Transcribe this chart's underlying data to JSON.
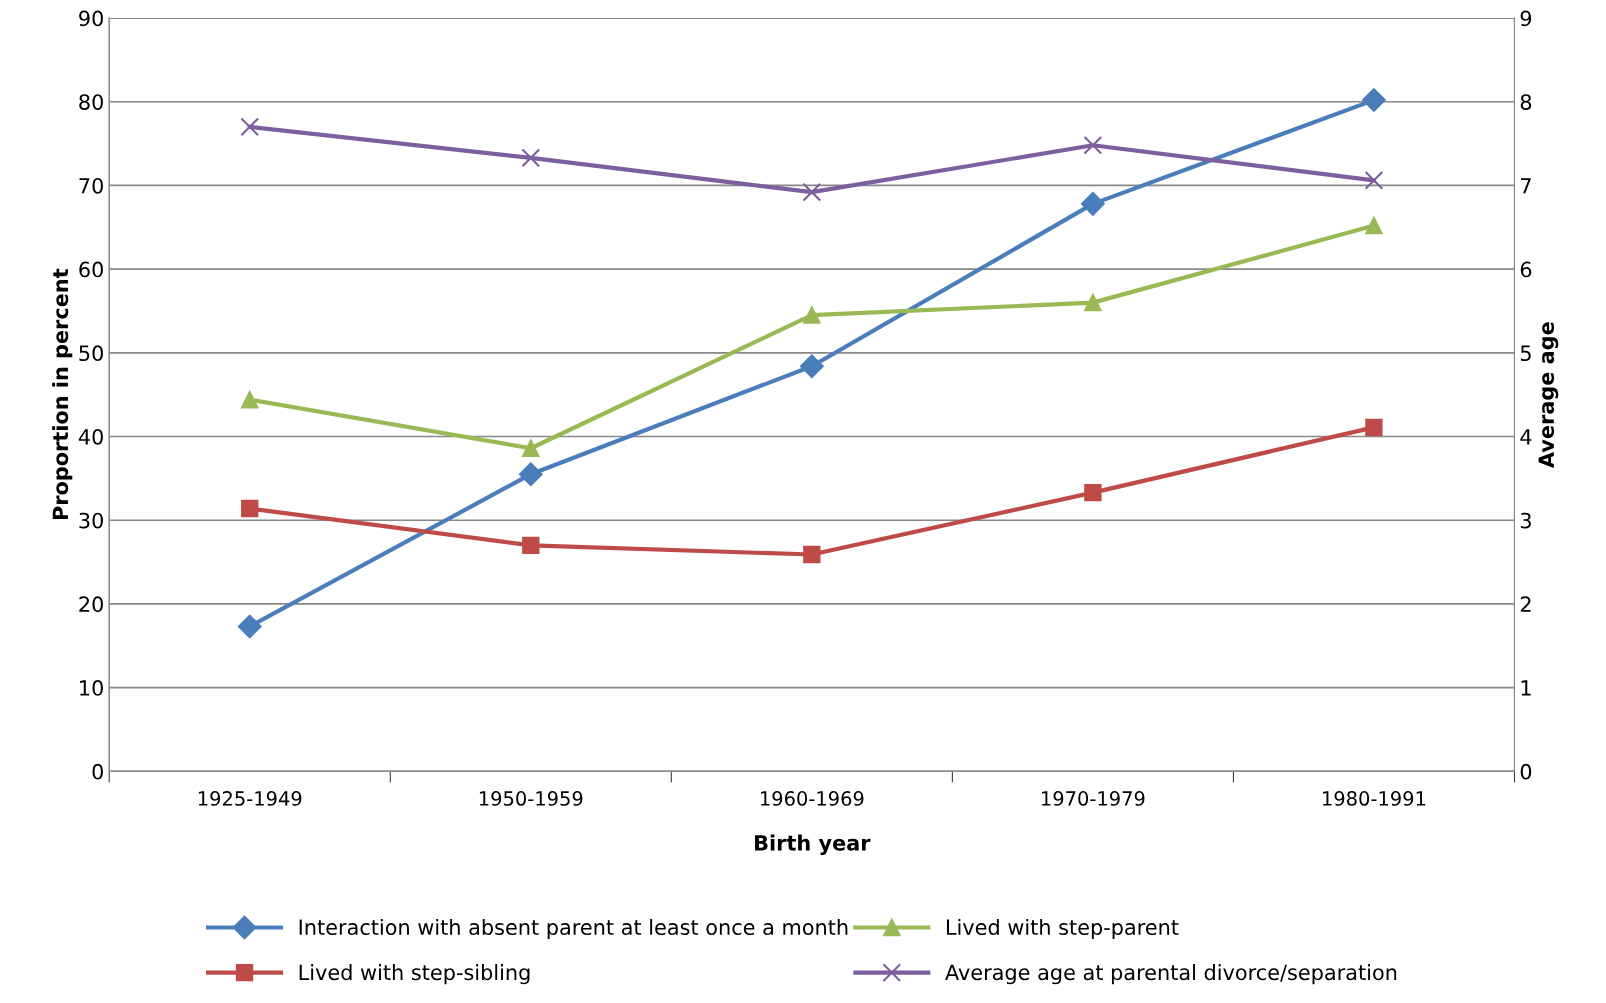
{
  "chart_data": {
    "type": "line",
    "xlabel": "Birth year",
    "ylabel": "Proportion in percent",
    "y2label": "Average age",
    "categories": [
      "1925-1949",
      "1950-1959",
      "1960-1969",
      "1970-1979",
      "1980-1991"
    ],
    "series": [
      {
        "name": "Interaction with absent parent at least once a month",
        "color": "#4a7ebb",
        "marker": "diamond",
        "values": [
          17.3,
          35.5,
          48.4,
          67.8,
          80.2
        ]
      },
      {
        "name": "Lived with step-sibling",
        "color": "#be4b48",
        "marker": "square",
        "values": [
          31.4,
          27.0,
          25.9,
          33.3,
          41.1
        ]
      },
      {
        "name": "Lived with step-parent",
        "color": "#98b954",
        "marker": "triangle",
        "values": [
          44.4,
          38.6,
          54.5,
          56.0,
          65.2
        ]
      },
      {
        "name": "Average age at parental divorce/separation",
        "color": "#7d5fa0",
        "marker": "cross",
        "axis": "y2",
        "values": [
          7.7,
          7.33,
          6.92,
          7.48,
          7.06
        ]
      }
    ],
    "ylim": [
      0,
      90
    ],
    "yticks": [
      0,
      10,
      20,
      30,
      40,
      50,
      60,
      70,
      80,
      90
    ],
    "y2lim": [
      0,
      9
    ],
    "y2ticks": [
      0,
      1,
      2,
      3,
      4,
      5,
      6,
      7,
      8,
      9
    ],
    "grid": "y",
    "legend": "bottom",
    "line_style": "solid"
  }
}
